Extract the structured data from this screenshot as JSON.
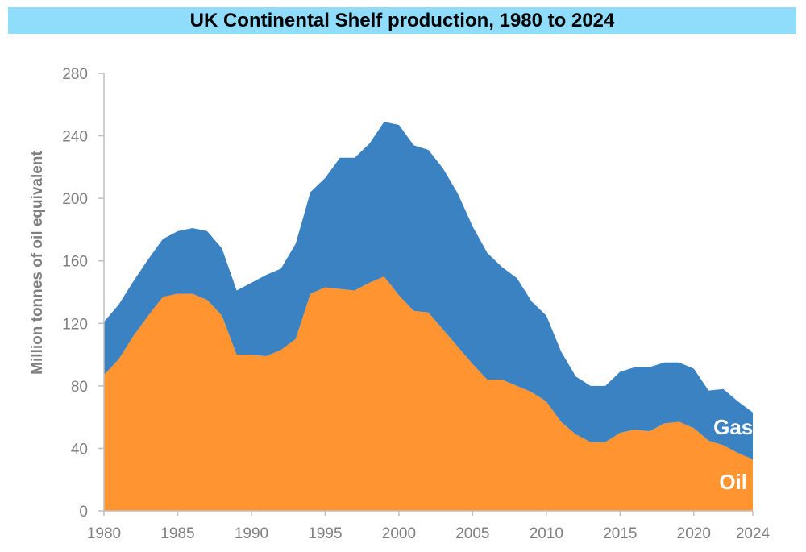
{
  "chart_data": {
    "type": "area",
    "stacked": true,
    "title": "UK Continental Shelf production, 1980 to 2024",
    "xlabel": "",
    "ylabel": "Million tonnes of oil equivalent",
    "xlim": [
      1980,
      2024
    ],
    "ylim": [
      0,
      280
    ],
    "x_ticks": [
      1980,
      1985,
      1990,
      1995,
      2000,
      2005,
      2010,
      2015,
      2020,
      2024
    ],
    "y_ticks": [
      0,
      40,
      80,
      120,
      160,
      200,
      240,
      280
    ],
    "grid": false,
    "legend": "none",
    "x": [
      1980,
      1981,
      1982,
      1983,
      1984,
      1985,
      1986,
      1987,
      1988,
      1989,
      1990,
      1991,
      1992,
      1993,
      1994,
      1995,
      1996,
      1997,
      1998,
      1999,
      2000,
      2001,
      2002,
      2003,
      2004,
      2005,
      2006,
      2007,
      2008,
      2009,
      2010,
      2011,
      2012,
      2013,
      2014,
      2015,
      2016,
      2017,
      2018,
      2019,
      2020,
      2021,
      2022,
      2023,
      2024
    ],
    "series": [
      {
        "name": "Oil",
        "color": "#ff9430",
        "values": [
          87,
          97,
          112,
          125,
          137,
          139,
          139,
          135,
          125,
          100,
          100,
          99,
          103,
          110,
          139,
          143,
          142,
          141,
          146,
          150,
          138,
          128,
          127,
          116,
          105,
          94,
          84,
          84,
          80,
          76,
          70,
          57,
          49,
          44,
          44,
          50,
          52,
          51,
          56,
          57,
          53,
          45,
          42,
          37,
          33
        ]
      },
      {
        "name": "Gas",
        "color": "#3b82c3",
        "values": [
          34,
          35,
          35,
          36,
          37,
          40,
          42,
          44,
          43,
          41,
          46,
          52,
          52,
          61,
          65,
          70,
          84,
          85,
          89,
          99,
          109,
          106,
          104,
          103,
          98,
          88,
          81,
          72,
          69,
          58,
          55,
          45,
          37,
          36,
          36,
          39,
          40,
          41,
          39,
          38,
          38,
          32,
          36,
          33,
          30
        ]
      }
    ],
    "annotations": [
      {
        "text": "Gas",
        "series": "Gas"
      },
      {
        "text": "Oil",
        "series": "Oil"
      }
    ]
  }
}
